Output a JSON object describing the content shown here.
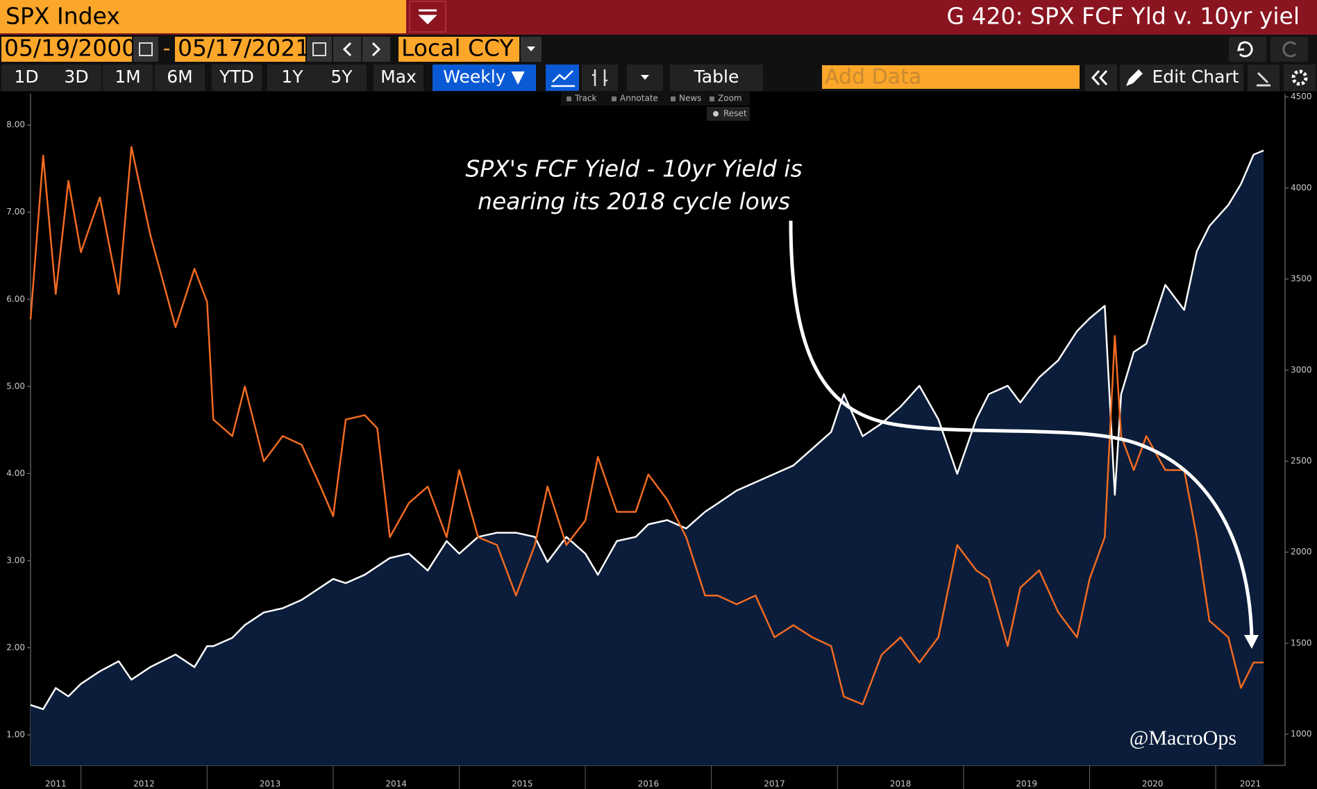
{
  "header": {
    "security": "SPX Index",
    "title": "G 420: SPX FCF Yld v. 10yr yiel"
  },
  "toolbar": {
    "start_date": "05/19/2000",
    "date_separator": "-",
    "end_date": "05/17/2021",
    "currency": "Local CCY",
    "periods": [
      "1D",
      "3D",
      "1M",
      "6M",
      "YTD",
      "1Y",
      "5Y",
      "Max"
    ],
    "frequency": "Weekly ▼",
    "table": "Table",
    "add_data": "Add Data",
    "edit_chart": "Edit Chart",
    "tools": [
      "Track",
      "Annotate",
      "News",
      "Zoom"
    ],
    "reset": "Reset"
  },
  "chart_data": {
    "type": "line",
    "annotation": [
      "SPX's FCF Yield - 10yr Yield is",
      "nearing its 2018 cycle lows"
    ],
    "watermark": "@MacroOps",
    "x": [
      2011.6,
      2011.7,
      2011.8,
      2011.9,
      2012.0,
      2012.15,
      2012.3,
      2012.4,
      2012.55,
      2012.75,
      2012.9,
      2013.0,
      2013.05,
      2013.2,
      2013.3,
      2013.45,
      2013.6,
      2013.75,
      2013.9,
      2014.0,
      2014.1,
      2014.25,
      2014.35,
      2014.45,
      2014.6,
      2014.75,
      2014.9,
      2015.0,
      2015.15,
      2015.3,
      2015.45,
      2015.6,
      2015.7,
      2015.85,
      2016.0,
      2016.1,
      2016.25,
      2016.4,
      2016.5,
      2016.65,
      2016.8,
      2016.95,
      2017.05,
      2017.2,
      2017.35,
      2017.5,
      2017.65,
      2017.8,
      2017.95,
      2018.05,
      2018.2,
      2018.35,
      2018.5,
      2018.65,
      2018.8,
      2018.95,
      2019.1,
      2019.2,
      2019.35,
      2019.45,
      2019.6,
      2019.75,
      2019.9,
      2020.0,
      2020.12,
      2020.2,
      2020.25,
      2020.35,
      2020.45,
      2020.6,
      2020.75,
      2020.85,
      2020.95,
      2021.1,
      2021.2,
      2021.3,
      2021.38
    ],
    "series": [
      {
        "color": "#f26b21",
        "axis": "y",
        "values": [
          5.77,
          7.65,
          6.06,
          7.36,
          6.54,
          7.17,
          6.06,
          7.75,
          6.74,
          5.68,
          6.35,
          5.97,
          4.62,
          4.43,
          5.0,
          4.14,
          4.43,
          4.33,
          3.85,
          3.51,
          4.62,
          4.67,
          4.52,
          3.27,
          3.66,
          3.85,
          3.27,
          4.04,
          3.27,
          3.18,
          2.6,
          3.18,
          3.85,
          3.18,
          3.46,
          4.19,
          3.56,
          3.56,
          3.99,
          3.7,
          3.27,
          2.6,
          2.6,
          2.5,
          2.6,
          2.12,
          2.26,
          2.12,
          2.02,
          1.44,
          1.35,
          1.92,
          2.12,
          1.83,
          2.12,
          3.18,
          2.89,
          2.79,
          2.02,
          2.69,
          2.89,
          2.41,
          2.12,
          2.79,
          3.27,
          5.58,
          4.43,
          4.04,
          4.43,
          4.04,
          4.04,
          3.27,
          2.31,
          2.12,
          1.54,
          1.83,
          1.83
        ]
      },
      {
        "color": "#ffffff",
        "fill": "#0b1d3a",
        "axis": "y2",
        "values": [
          1161,
          1138,
          1254,
          1208,
          1277,
          1346,
          1401,
          1300,
          1369,
          1438,
          1369,
          1484,
          1484,
          1530,
          1600,
          1669,
          1692,
          1738,
          1807,
          1853,
          1830,
          1876,
          1922,
          1968,
          1992,
          1899,
          2061,
          1992,
          2084,
          2107,
          2107,
          2084,
          1946,
          2084,
          1992,
          1876,
          2061,
          2084,
          2153,
          2176,
          2130,
          2222,
          2268,
          2338,
          2384,
          2430,
          2476,
          2568,
          2660,
          2868,
          2637,
          2707,
          2799,
          2914,
          2730,
          2430,
          2730,
          2868,
          2914,
          2822,
          2960,
          3053,
          3214,
          3284,
          3353,
          2315,
          2868,
          3099,
          3145,
          3468,
          3330,
          3653,
          3791,
          3907,
          4021,
          4183,
          4206
        ]
      }
    ],
    "xlim": [
      2011.6,
      2021.55
    ],
    "xticks": [
      2011,
      2012,
      2013,
      2014,
      2015,
      2016,
      2017,
      2018,
      2019,
      2020,
      2021
    ],
    "ylim": [
      0.65,
      8.36
    ],
    "yticks": [
      {
        "value": 1,
        "label": "1.00"
      },
      {
        "value": 2,
        "label": "2.00"
      },
      {
        "value": 3,
        "label": "3.00"
      },
      {
        "value": 4,
        "label": "4.00"
      },
      {
        "value": 5,
        "label": "5.00"
      },
      {
        "value": 6,
        "label": "6.00"
      },
      {
        "value": 7,
        "label": "7.00"
      },
      {
        "value": 8,
        "label": "8.00"
      }
    ],
    "y2lim": [
      829,
      4518
    ],
    "y2ticks": [
      1000,
      1500,
      2000,
      2500,
      3000,
      3500,
      4000,
      4500
    ]
  }
}
